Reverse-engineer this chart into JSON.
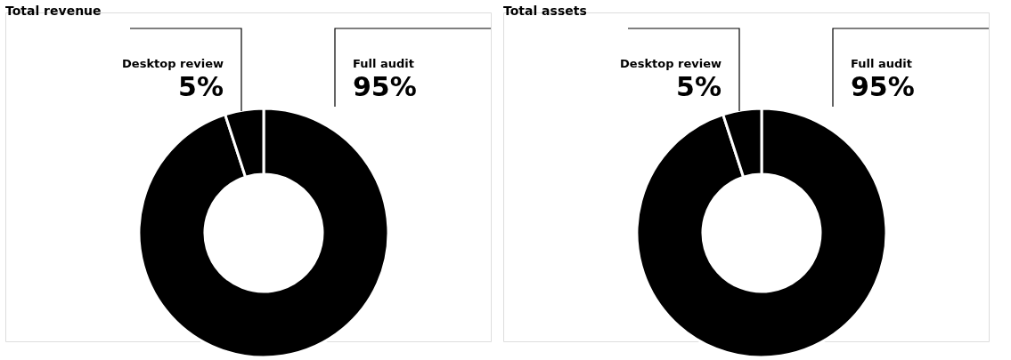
{
  "chart_data": [
    {
      "type": "donut",
      "title": "Total revenue",
      "categories": [
        "Full audit",
        "Desktop review"
      ],
      "values": [
        95,
        5
      ],
      "colors": [
        "#000000",
        "#000000"
      ],
      "value_labels": [
        "95%",
        "5%"
      ]
    },
    {
      "type": "donut",
      "title": "Total assets",
      "categories": [
        "Full audit",
        "Desktop review"
      ],
      "values": [
        95,
        5
      ],
      "colors": [
        "#000000",
        "#000000"
      ],
      "value_labels": [
        "95%",
        "5%"
      ]
    }
  ]
}
